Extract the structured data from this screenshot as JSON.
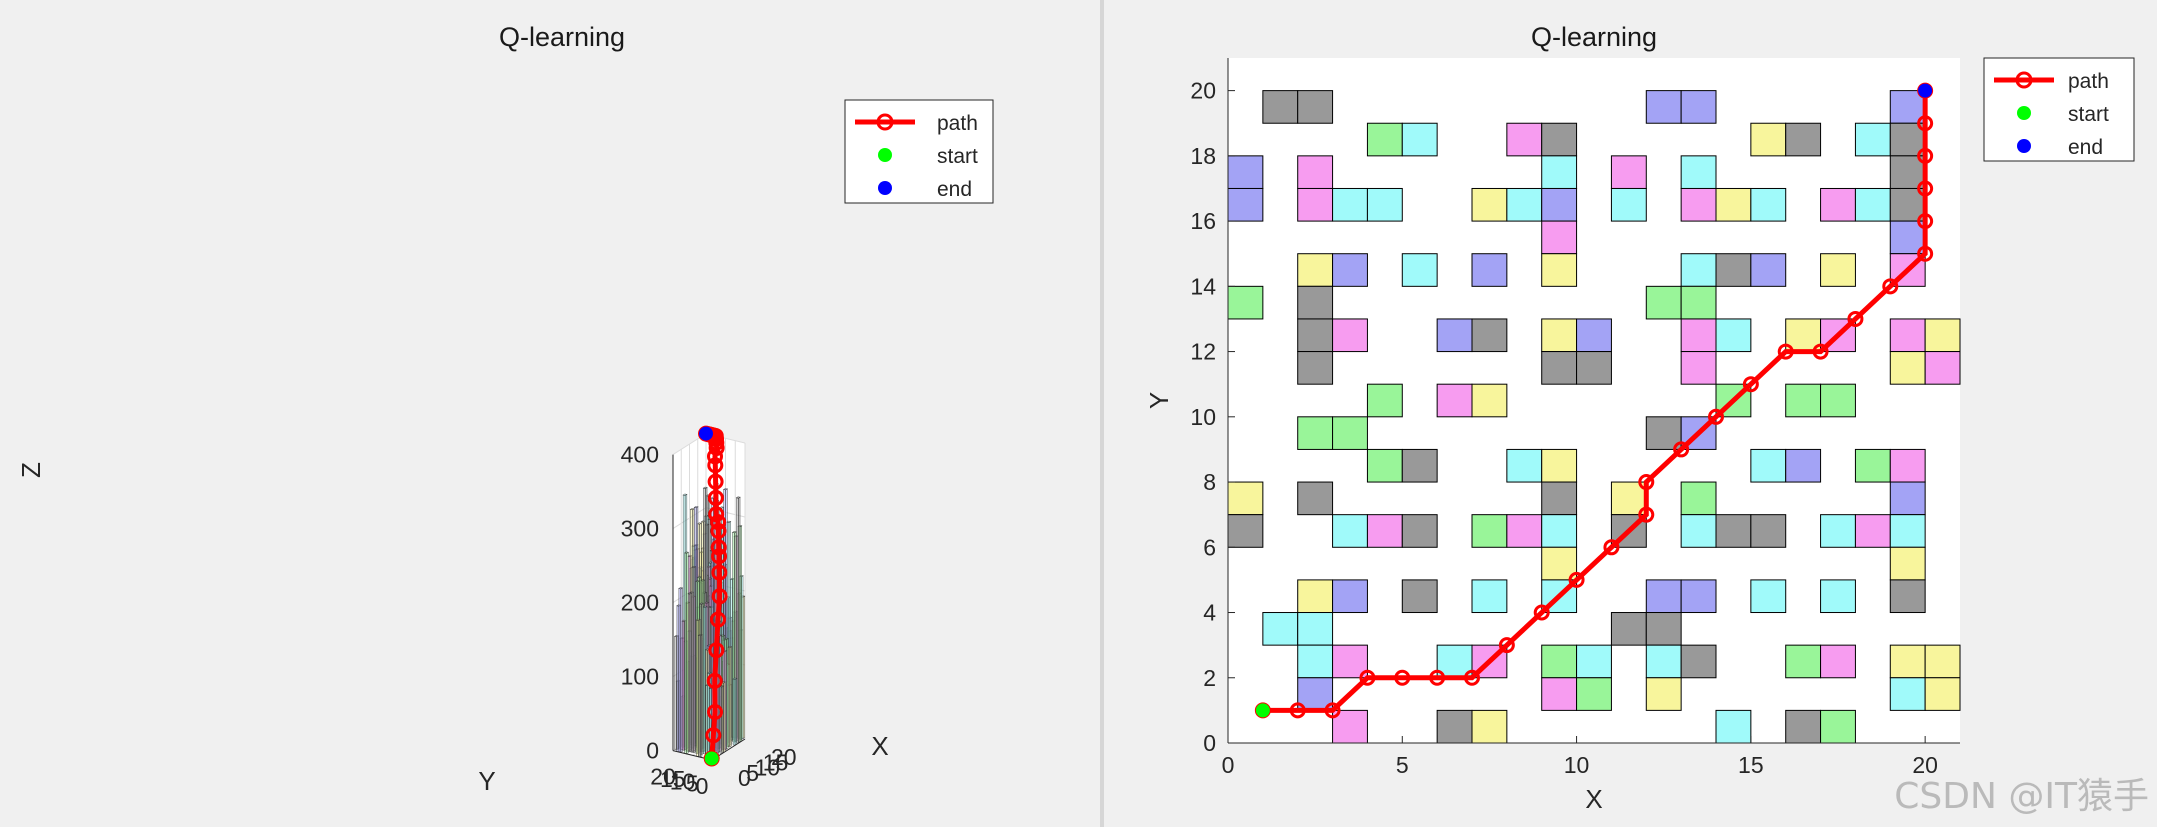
{
  "figures": [
    {
      "id": "left",
      "title": "Q-learning",
      "xlabel": "X",
      "ylabel": "Y",
      "zlabel": "Z"
    },
    {
      "id": "right",
      "title": "Q-learning",
      "xlabel": "X",
      "ylabel": "Y"
    }
  ],
  "legend": {
    "entries": [
      "path",
      "start",
      "end"
    ]
  },
  "colors": {
    "path": "#ff0000",
    "start": "#00ff00",
    "end": "#0000ff"
  },
  "watermark": "CSDN @IT猿手",
  "chart_data": [
    {
      "type": "bar3d",
      "title": "Q-learning",
      "xlabel": "X",
      "ylabel": "Y",
      "zlabel": "Z",
      "xlim": [
        0,
        20
      ],
      "ylim": [
        0,
        20
      ],
      "zlim": [
        0,
        400
      ],
      "xticks": [
        0,
        5,
        10,
        15,
        20
      ],
      "yticks": [
        0,
        5,
        10,
        15,
        20
      ],
      "zticks": [
        0,
        100,
        200,
        300,
        400
      ],
      "grid": true,
      "legend": {
        "entries": [
          "path",
          "start",
          "end"
        ],
        "placement": "top-right"
      },
      "series": [
        {
          "name": "path",
          "type": "line3d",
          "points": [
            [
              1,
              1,
              0
            ],
            [
              2,
              1,
              30
            ],
            [
              3,
              1,
              60
            ],
            [
              4,
              2,
              100
            ],
            [
              5,
              2,
              140
            ],
            [
              6,
              2,
              180
            ],
            [
              7,
              2,
              210
            ],
            [
              8,
              3,
              240
            ],
            [
              9,
              4,
              260
            ],
            [
              10,
              5,
              270
            ],
            [
              11,
              6,
              290
            ],
            [
              12,
              7,
              300
            ],
            [
              12,
              8,
              310
            ],
            [
              13,
              9,
              330
            ],
            [
              14,
              10,
              350
            ],
            [
              15,
              11,
              370
            ],
            [
              16,
              12,
              380
            ],
            [
              17,
              12,
              390
            ],
            [
              18,
              13,
              395
            ],
            [
              19,
              14,
              398
            ],
            [
              20,
              15,
              400
            ],
            [
              20,
              16,
              400
            ],
            [
              20,
              17,
              400
            ],
            [
              20,
              18,
              400
            ],
            [
              20,
              19,
              400
            ],
            [
              20,
              20,
              400
            ]
          ]
        },
        {
          "name": "start",
          "type": "point",
          "x": 1,
          "y": 1,
          "z": 0
        },
        {
          "name": "end",
          "type": "point",
          "x": 20,
          "y": 20,
          "z": 400
        }
      ]
    },
    {
      "type": "grid-map",
      "title": "Q-learning",
      "xlabel": "X",
      "ylabel": "Y",
      "xlim": [
        0,
        21
      ],
      "ylim": [
        0,
        21
      ],
      "xticks": [
        0,
        5,
        10,
        15,
        20
      ],
      "yticks": [
        0,
        2,
        4,
        6,
        8,
        10,
        12,
        14,
        16,
        18,
        20
      ],
      "legend": {
        "entries": [
          "path",
          "start",
          "end"
        ],
        "placement": "top-right"
      },
      "obstacle_colors": {
        "k": "#999999",
        "g": "#99f599",
        "c": "#a0fafa",
        "m": "#f79cf0",
        "b": "#a3a3f5",
        "y": "#f8f59c"
      },
      "obstacles": [
        {
          "x": 2,
          "y": 20,
          "c": "k"
        },
        {
          "x": 3,
          "y": 20,
          "c": "k"
        },
        {
          "x": 13,
          "y": 20,
          "c": "b"
        },
        {
          "x": 14,
          "y": 20,
          "c": "b"
        },
        {
          "x": 20,
          "y": 20,
          "c": "b"
        },
        {
          "x": 5,
          "y": 19,
          "c": "g"
        },
        {
          "x": 6,
          "y": 19,
          "c": "c"
        },
        {
          "x": 9,
          "y": 19,
          "c": "m"
        },
        {
          "x": 10,
          "y": 19,
          "c": "k"
        },
        {
          "x": 16,
          "y": 19,
          "c": "y"
        },
        {
          "x": 17,
          "y": 19,
          "c": "k"
        },
        {
          "x": 19,
          "y": 19,
          "c": "c"
        },
        {
          "x": 20,
          "y": 19,
          "c": "k"
        },
        {
          "x": 1,
          "y": 18,
          "c": "b"
        },
        {
          "x": 3,
          "y": 18,
          "c": "m"
        },
        {
          "x": 10,
          "y": 18,
          "c": "c"
        },
        {
          "x": 12,
          "y": 18,
          "c": "m"
        },
        {
          "x": 14,
          "y": 18,
          "c": "c"
        },
        {
          "x": 20,
          "y": 18,
          "c": "k"
        },
        {
          "x": 1,
          "y": 17,
          "c": "b"
        },
        {
          "x": 3,
          "y": 17,
          "c": "m"
        },
        {
          "x": 4,
          "y": 17,
          "c": "c"
        },
        {
          "x": 5,
          "y": 17,
          "c": "c"
        },
        {
          "x": 8,
          "y": 17,
          "c": "y"
        },
        {
          "x": 9,
          "y": 17,
          "c": "c"
        },
        {
          "x": 10,
          "y": 17,
          "c": "b"
        },
        {
          "x": 12,
          "y": 17,
          "c": "c"
        },
        {
          "x": 14,
          "y": 17,
          "c": "m"
        },
        {
          "x": 15,
          "y": 17,
          "c": "y"
        },
        {
          "x": 16,
          "y": 17,
          "c": "c"
        },
        {
          "x": 18,
          "y": 17,
          "c": "m"
        },
        {
          "x": 19,
          "y": 17,
          "c": "c"
        },
        {
          "x": 20,
          "y": 17,
          "c": "k"
        },
        {
          "x": 10,
          "y": 16,
          "c": "m"
        },
        {
          "x": 20,
          "y": 16,
          "c": "b"
        },
        {
          "x": 3,
          "y": 15,
          "c": "y"
        },
        {
          "x": 4,
          "y": 15,
          "c": "b"
        },
        {
          "x": 6,
          "y": 15,
          "c": "c"
        },
        {
          "x": 8,
          "y": 15,
          "c": "b"
        },
        {
          "x": 10,
          "y": 15,
          "c": "y"
        },
        {
          "x": 14,
          "y": 15,
          "c": "c"
        },
        {
          "x": 15,
          "y": 15,
          "c": "k"
        },
        {
          "x": 16,
          "y": 15,
          "c": "b"
        },
        {
          "x": 18,
          "y": 15,
          "c": "y"
        },
        {
          "x": 20,
          "y": 15,
          "c": "m"
        },
        {
          "x": 1,
          "y": 14,
          "c": "g"
        },
        {
          "x": 3,
          "y": 14,
          "c": "k"
        },
        {
          "x": 13,
          "y": 14,
          "c": "g"
        },
        {
          "x": 14,
          "y": 14,
          "c": "g"
        },
        {
          "x": 3,
          "y": 13,
          "c": "k"
        },
        {
          "x": 4,
          "y": 13,
          "c": "m"
        },
        {
          "x": 7,
          "y": 13,
          "c": "b"
        },
        {
          "x": 8,
          "y": 13,
          "c": "k"
        },
        {
          "x": 10,
          "y": 13,
          "c": "y"
        },
        {
          "x": 11,
          "y": 13,
          "c": "b"
        },
        {
          "x": 14,
          "y": 13,
          "c": "m"
        },
        {
          "x": 15,
          "y": 13,
          "c": "c"
        },
        {
          "x": 17,
          "y": 13,
          "c": "y"
        },
        {
          "x": 18,
          "y": 13,
          "c": "m"
        },
        {
          "x": 20,
          "y": 13,
          "c": "m"
        },
        {
          "x": 21,
          "y": 13,
          "c": "y"
        },
        {
          "x": 3,
          "y": 12,
          "c": "k"
        },
        {
          "x": 10,
          "y": 12,
          "c": "k"
        },
        {
          "x": 11,
          "y": 12,
          "c": "k"
        },
        {
          "x": 14,
          "y": 12,
          "c": "m"
        },
        {
          "x": 20,
          "y": 12,
          "c": "y"
        },
        {
          "x": 21,
          "y": 12,
          "c": "m"
        },
        {
          "x": 5,
          "y": 11,
          "c": "g"
        },
        {
          "x": 7,
          "y": 11,
          "c": "m"
        },
        {
          "x": 8,
          "y": 11,
          "c": "y"
        },
        {
          "x": 15,
          "y": 11,
          "c": "g"
        },
        {
          "x": 17,
          "y": 11,
          "c": "g"
        },
        {
          "x": 18,
          "y": 11,
          "c": "g"
        },
        {
          "x": 3,
          "y": 10,
          "c": "g"
        },
        {
          "x": 4,
          "y": 10,
          "c": "g"
        },
        {
          "x": 13,
          "y": 10,
          "c": "k"
        },
        {
          "x": 14,
          "y": 10,
          "c": "b"
        },
        {
          "x": 5,
          "y": 9,
          "c": "g"
        },
        {
          "x": 6,
          "y": 9,
          "c": "k"
        },
        {
          "x": 9,
          "y": 9,
          "c": "c"
        },
        {
          "x": 10,
          "y": 9,
          "c": "y"
        },
        {
          "x": 16,
          "y": 9,
          "c": "c"
        },
        {
          "x": 17,
          "y": 9,
          "c": "b"
        },
        {
          "x": 19,
          "y": 9,
          "c": "g"
        },
        {
          "x": 20,
          "y": 9,
          "c": "m"
        },
        {
          "x": 1,
          "y": 8,
          "c": "y"
        },
        {
          "x": 3,
          "y": 8,
          "c": "k"
        },
        {
          "x": 10,
          "y": 8,
          "c": "k"
        },
        {
          "x": 12,
          "y": 8,
          "c": "y"
        },
        {
          "x": 14,
          "y": 8,
          "c": "g"
        },
        {
          "x": 20,
          "y": 8,
          "c": "b"
        },
        {
          "x": 1,
          "y": 7,
          "c": "k"
        },
        {
          "x": 4,
          "y": 7,
          "c": "c"
        },
        {
          "x": 5,
          "y": 7,
          "c": "m"
        },
        {
          "x": 6,
          "y": 7,
          "c": "k"
        },
        {
          "x": 8,
          "y": 7,
          "c": "g"
        },
        {
          "x": 9,
          "y": 7,
          "c": "m"
        },
        {
          "x": 10,
          "y": 7,
          "c": "c"
        },
        {
          "x": 12,
          "y": 7,
          "c": "k"
        },
        {
          "x": 14,
          "y": 7,
          "c": "c"
        },
        {
          "x": 15,
          "y": 7,
          "c": "k"
        },
        {
          "x": 16,
          "y": 7,
          "c": "k"
        },
        {
          "x": 18,
          "y": 7,
          "c": "c"
        },
        {
          "x": 19,
          "y": 7,
          "c": "m"
        },
        {
          "x": 20,
          "y": 7,
          "c": "c"
        },
        {
          "x": 10,
          "y": 6,
          "c": "y"
        },
        {
          "x": 20,
          "y": 6,
          "c": "y"
        },
        {
          "x": 3,
          "y": 5,
          "c": "y"
        },
        {
          "x": 4,
          "y": 5,
          "c": "b"
        },
        {
          "x": 6,
          "y": 5,
          "c": "k"
        },
        {
          "x": 8,
          "y": 5,
          "c": "c"
        },
        {
          "x": 10,
          "y": 5,
          "c": "c"
        },
        {
          "x": 13,
          "y": 5,
          "c": "b"
        },
        {
          "x": 14,
          "y": 5,
          "c": "b"
        },
        {
          "x": 16,
          "y": 5,
          "c": "c"
        },
        {
          "x": 18,
          "y": 5,
          "c": "c"
        },
        {
          "x": 20,
          "y": 5,
          "c": "k"
        },
        {
          "x": 2,
          "y": 4,
          "c": "c"
        },
        {
          "x": 3,
          "y": 4,
          "c": "c"
        },
        {
          "x": 12,
          "y": 4,
          "c": "k"
        },
        {
          "x": 13,
          "y": 4,
          "c": "k"
        },
        {
          "x": 3,
          "y": 3,
          "c": "c"
        },
        {
          "x": 4,
          "y": 3,
          "c": "m"
        },
        {
          "x": 7,
          "y": 3,
          "c": "c"
        },
        {
          "x": 8,
          "y": 3,
          "c": "m"
        },
        {
          "x": 10,
          "y": 3,
          "c": "g"
        },
        {
          "x": 11,
          "y": 3,
          "c": "c"
        },
        {
          "x": 13,
          "y": 3,
          "c": "c"
        },
        {
          "x": 14,
          "y": 3,
          "c": "k"
        },
        {
          "x": 17,
          "y": 3,
          "c": "g"
        },
        {
          "x": 18,
          "y": 3,
          "c": "m"
        },
        {
          "x": 20,
          "y": 3,
          "c": "y"
        },
        {
          "x": 21,
          "y": 3,
          "c": "y"
        },
        {
          "x": 3,
          "y": 2,
          "c": "b"
        },
        {
          "x": 10,
          "y": 2,
          "c": "m"
        },
        {
          "x": 11,
          "y": 2,
          "c": "g"
        },
        {
          "x": 13,
          "y": 2,
          "c": "y"
        },
        {
          "x": 20,
          "y": 2,
          "c": "c"
        },
        {
          "x": 21,
          "y": 2,
          "c": "y"
        },
        {
          "x": 4,
          "y": 1,
          "c": "m"
        },
        {
          "x": 7,
          "y": 1,
          "c": "k"
        },
        {
          "x": 8,
          "y": 1,
          "c": "y"
        },
        {
          "x": 15,
          "y": 1,
          "c": "c"
        },
        {
          "x": 17,
          "y": 1,
          "c": "k"
        },
        {
          "x": 18,
          "y": 1,
          "c": "g"
        }
      ],
      "series": [
        {
          "name": "path",
          "type": "line",
          "points": [
            [
              1,
              1
            ],
            [
              2,
              1
            ],
            [
              3,
              1
            ],
            [
              4,
              2
            ],
            [
              5,
              2
            ],
            [
              6,
              2
            ],
            [
              7,
              2
            ],
            [
              8,
              3
            ],
            [
              9,
              4
            ],
            [
              10,
              5
            ],
            [
              11,
              6
            ],
            [
              12,
              7
            ],
            [
              12,
              8
            ],
            [
              13,
              9
            ],
            [
              14,
              10
            ],
            [
              15,
              11
            ],
            [
              16,
              12
            ],
            [
              17,
              12
            ],
            [
              18,
              13
            ],
            [
              19,
              14
            ],
            [
              20,
              15
            ],
            [
              20,
              16
            ],
            [
              20,
              17
            ],
            [
              20,
              18
            ],
            [
              20,
              19
            ],
            [
              20,
              20
            ]
          ]
        },
        {
          "name": "start",
          "type": "point",
          "x": 1,
          "y": 1
        },
        {
          "name": "end",
          "type": "point",
          "x": 20,
          "y": 20
        }
      ]
    }
  ]
}
